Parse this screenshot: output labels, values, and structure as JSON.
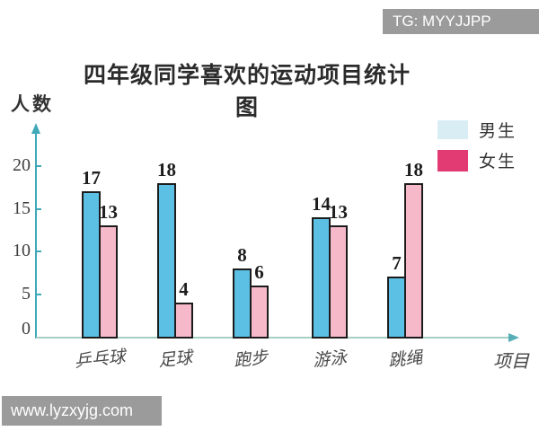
{
  "watermarks": {
    "top_right": "TG: MYYJJPP",
    "bottom_left": "www.lyzxyjg.com"
  },
  "title": "四年级同学喜欢的运动项目统计图",
  "axes": {
    "y_label": "人数",
    "x_label": "项目",
    "y_ticks": [
      0,
      5,
      10,
      15,
      20
    ]
  },
  "legend": {
    "items": [
      {
        "label": "男生",
        "color": "#d9eef4"
      },
      {
        "label": "女生",
        "color": "#e23a72"
      }
    ]
  },
  "chart_data": {
    "type": "bar",
    "title": "四年级同学喜欢的运动项目统计图",
    "categories": [
      "乒乓球",
      "足球",
      "跑步",
      "游泳",
      "跳绳"
    ],
    "series": [
      {
        "name": "男生",
        "color": "#5bc0e4",
        "values": [
          17,
          18,
          8,
          14,
          7
        ]
      },
      {
        "name": "女生",
        "color": "#f6b9ca",
        "values": [
          13,
          4,
          6,
          13,
          18
        ]
      }
    ],
    "xlabel": "项目",
    "ylabel": "人数",
    "ylim": [
      0,
      22
    ],
    "yticks": [
      0,
      5,
      10,
      15,
      20
    ],
    "legend_position": "top-right",
    "grid": false,
    "bar_border_color": "#1c1c1c"
  },
  "colors": {
    "y_axis": "#3fa9b8",
    "x_axis": "#a5cfc5",
    "watermark_bg": "#9b9b9b",
    "watermark_text": "#ffffff"
  }
}
